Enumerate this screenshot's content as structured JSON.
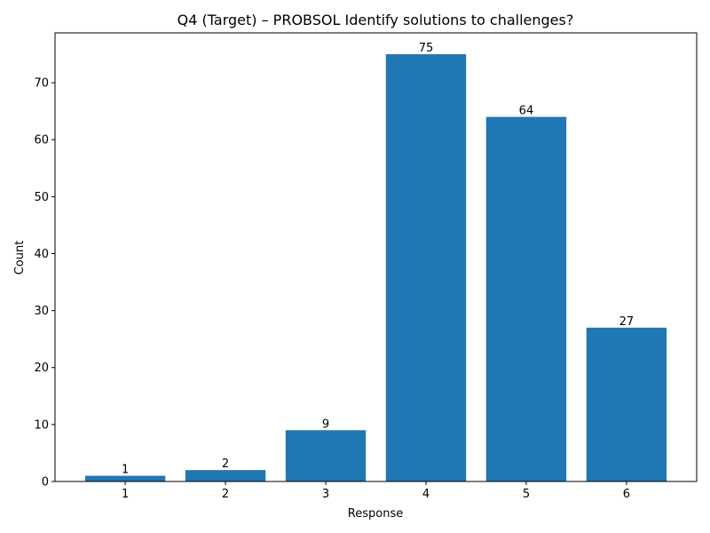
{
  "chart_data": {
    "type": "bar",
    "title": "Q4 (Target) – PROBSOL Identify solutions to challenges?",
    "xlabel": "Response",
    "ylabel": "Count",
    "categories": [
      "1",
      "2",
      "3",
      "4",
      "5",
      "6"
    ],
    "values": [
      1,
      2,
      9,
      75,
      64,
      27
    ],
    "data_labels": [
      "1",
      "2",
      "9",
      "75",
      "64",
      "27"
    ],
    "y_ticks": [
      0,
      10,
      20,
      30,
      40,
      50,
      60,
      70
    ],
    "ylim": [
      0,
      78.75
    ],
    "grid": false,
    "legend": "none",
    "colors": {
      "bar": "#1f77b4",
      "axis": "#000000"
    }
  }
}
